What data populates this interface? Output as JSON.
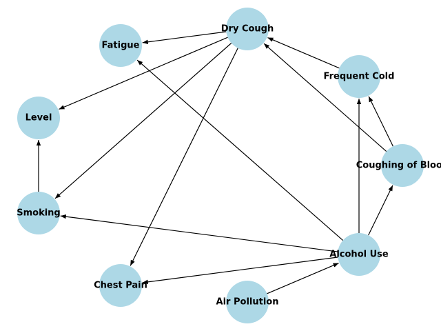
{
  "graph": {
    "node_color": "#add8e6",
    "edge_color": "#000000",
    "directed": true,
    "nodes": [
      {
        "id": "dry_cough",
        "label": "Dry Cough"
      },
      {
        "id": "fatigue",
        "label": "Fatigue"
      },
      {
        "id": "frequent_cold",
        "label": "Frequent Cold"
      },
      {
        "id": "level",
        "label": "Level"
      },
      {
        "id": "coughing_of_blood",
        "label": "Coughing of Blood"
      },
      {
        "id": "smoking",
        "label": "Smoking"
      },
      {
        "id": "alcohol_use",
        "label": "Alcohol Use"
      },
      {
        "id": "chest_pain",
        "label": "Chest Pain"
      },
      {
        "id": "air_pollution",
        "label": "Air Pollution"
      }
    ],
    "edges": [
      {
        "from": "dry_cough",
        "to": "fatigue"
      },
      {
        "from": "dry_cough",
        "to": "level"
      },
      {
        "from": "dry_cough",
        "to": "smoking"
      },
      {
        "from": "dry_cough",
        "to": "chest_pain"
      },
      {
        "from": "frequent_cold",
        "to": "dry_cough"
      },
      {
        "from": "coughing_of_blood",
        "to": "dry_cough"
      },
      {
        "from": "coughing_of_blood",
        "to": "frequent_cold"
      },
      {
        "from": "smoking",
        "to": "level"
      },
      {
        "from": "alcohol_use",
        "to": "fatigue"
      },
      {
        "from": "alcohol_use",
        "to": "frequent_cold"
      },
      {
        "from": "alcohol_use",
        "to": "coughing_of_blood"
      },
      {
        "from": "alcohol_use",
        "to": "smoking"
      },
      {
        "from": "alcohol_use",
        "to": "chest_pain"
      },
      {
        "from": "air_pollution",
        "to": "alcohol_use"
      }
    ]
  }
}
